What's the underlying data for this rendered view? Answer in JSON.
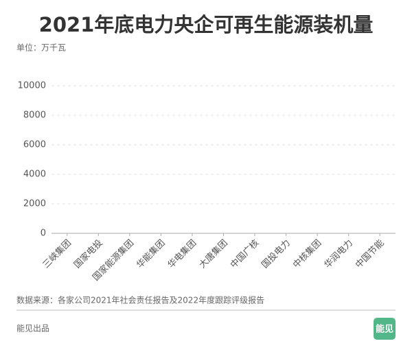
{
  "chart_data": {
    "type": "bar",
    "title": "2021年底电力央企可再生能源装机量",
    "unit": "单位：万千瓦",
    "categories": [
      "三峡集团",
      "国家电投",
      "国家能源集团",
      "华能集团",
      "华电集团",
      "大唐集团",
      "中国广核",
      "国投电力",
      "中核集团",
      "华润电力",
      "中国节能"
    ],
    "values": [
      0,
      0,
      0,
      0,
      0,
      0,
      0,
      0,
      0,
      0,
      0
    ],
    "color": "#3aa876",
    "ylim": [
      0,
      10000
    ],
    "yticks": [
      0,
      2000,
      4000,
      6000,
      8000,
      10000
    ],
    "grid": true,
    "source": "数据来源：各家公司2021年社会责任报告及2022年度跟踪评级报告",
    "credit": "能见出品",
    "logo": "能见"
  }
}
